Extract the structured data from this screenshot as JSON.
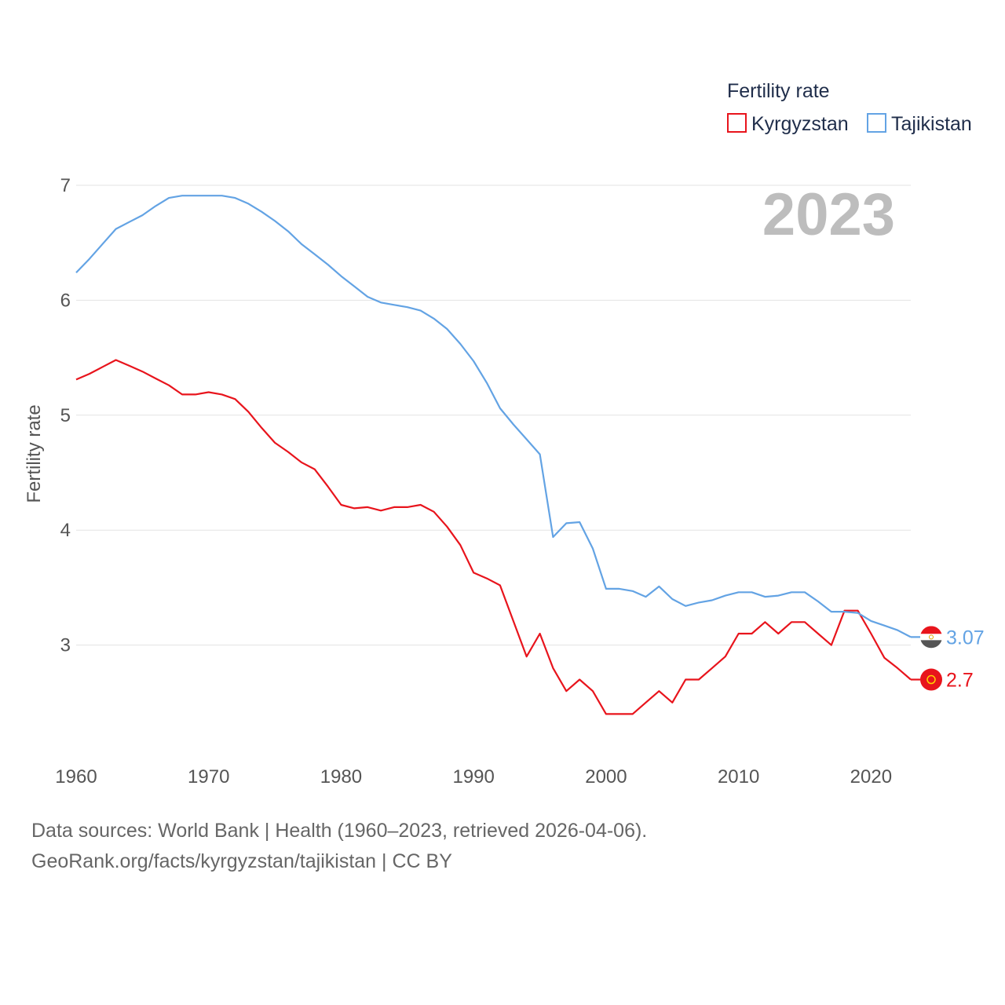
{
  "chart_data": {
    "type": "line",
    "title": "2023",
    "xlabel": "",
    "ylabel": "Fertility rate",
    "xlim": [
      1960,
      2023
    ],
    "ylim": [
      2.0,
      7.0
    ],
    "yticks": [
      3,
      4,
      5,
      6,
      7
    ],
    "xticks": [
      1960,
      1970,
      1980,
      1990,
      2000,
      2010,
      2020
    ],
    "xtick_labels": [
      "1960",
      "1970",
      "1980",
      "1990",
      "2000",
      "2010",
      "2020"
    ],
    "ytick_labels": [
      "3",
      "4",
      "5",
      "6",
      "7"
    ],
    "grid": true,
    "legend": {
      "title": "Fertility rate",
      "position": "top-right",
      "entries": [
        "Kyrgyzstan",
        "Tajikistan"
      ]
    },
    "x": [
      1960,
      1961,
      1962,
      1963,
      1964,
      1965,
      1966,
      1967,
      1968,
      1969,
      1970,
      1971,
      1972,
      1973,
      1974,
      1975,
      1976,
      1977,
      1978,
      1979,
      1980,
      1981,
      1982,
      1983,
      1984,
      1985,
      1986,
      1987,
      1988,
      1989,
      1990,
      1991,
      1992,
      1993,
      1994,
      1995,
      1996,
      1997,
      1998,
      1999,
      2000,
      2001,
      2002,
      2003,
      2004,
      2005,
      2006,
      2007,
      2008,
      2009,
      2010,
      2011,
      2012,
      2013,
      2014,
      2015,
      2016,
      2017,
      2018,
      2019,
      2020,
      2021,
      2022,
      2023
    ],
    "series": [
      {
        "name": "Kyrgyzstan",
        "color": "#e8141c",
        "end_label": "2.7",
        "values": [
          5.31,
          5.36,
          5.42,
          5.48,
          5.43,
          5.38,
          5.32,
          5.26,
          5.18,
          5.18,
          5.2,
          5.18,
          5.14,
          5.03,
          4.89,
          4.76,
          4.68,
          4.59,
          4.53,
          4.38,
          4.22,
          4.19,
          4.2,
          4.17,
          4.2,
          4.2,
          4.22,
          4.16,
          4.03,
          3.87,
          3.63,
          3.58,
          3.52,
          3.21,
          2.9,
          3.1,
          2.8,
          2.6,
          2.7,
          2.6,
          2.4,
          2.4,
          2.4,
          2.5,
          2.6,
          2.5,
          2.7,
          2.7,
          2.8,
          2.9,
          3.1,
          3.1,
          3.2,
          3.1,
          3.2,
          3.2,
          3.1,
          3.0,
          3.3,
          3.3,
          3.1,
          2.89,
          2.8,
          2.7
        ]
      },
      {
        "name": "Tajikistan",
        "color": "#63a3e4",
        "end_label": "3.07",
        "values": [
          6.24,
          6.36,
          6.49,
          6.62,
          6.68,
          6.74,
          6.82,
          6.89,
          6.91,
          6.91,
          6.91,
          6.91,
          6.89,
          6.84,
          6.77,
          6.69,
          6.6,
          6.49,
          6.4,
          6.31,
          6.21,
          6.12,
          6.03,
          5.98,
          5.96,
          5.94,
          5.91,
          5.84,
          5.75,
          5.62,
          5.47,
          5.28,
          5.06,
          4.92,
          4.79,
          4.66,
          3.94,
          4.06,
          4.07,
          3.84,
          3.49,
          3.49,
          3.47,
          3.42,
          3.51,
          3.4,
          3.34,
          3.37,
          3.39,
          3.43,
          3.46,
          3.46,
          3.42,
          3.43,
          3.46,
          3.46,
          3.38,
          3.29,
          3.29,
          3.28,
          3.21,
          3.17,
          3.13,
          3.07
        ]
      }
    ]
  },
  "footer": {
    "sources": "Data sources: World Bank | Health (1960–2023, retrieved 2026-04-06).",
    "link": "GeoRank.org/facts/kyrgyzstan/tajikistan | CC BY"
  }
}
